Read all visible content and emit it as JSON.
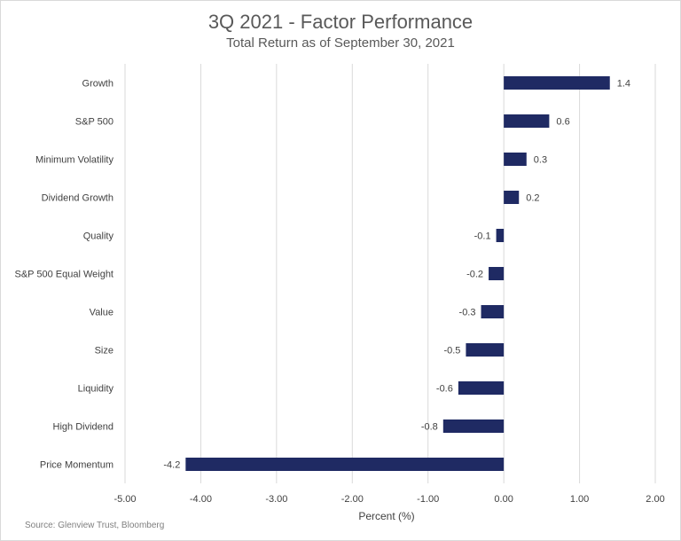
{
  "header": {
    "title": "3Q 2021 - Factor Performance",
    "subtitle": "Total Return as of September 30, 2021"
  },
  "footer": {
    "source": "Source: Glenview Trust, Bloomberg"
  },
  "chart_data": {
    "type": "bar",
    "orientation": "horizontal",
    "title": "3Q 2021 - Factor Performance",
    "subtitle": "Total Return as of September 30, 2021",
    "xlabel": "Percent (%)",
    "ylabel": "",
    "xlim": [
      -5.0,
      2.0
    ],
    "xticks": [
      -5.0,
      -4.0,
      -3.0,
      -2.0,
      -1.0,
      0.0,
      1.0,
      2.0
    ],
    "xtick_labels": [
      "-5.00",
      "-4.00",
      "-3.00",
      "-2.00",
      "-1.00",
      "0.00",
      "1.00",
      "2.00"
    ],
    "grid": "vertical",
    "bar_color": "#1f2a63",
    "categories": [
      "Growth",
      "S&P 500",
      "Minimum Volatility",
      "Dividend Growth",
      "Quality",
      "S&P 500 Equal Weight",
      "Value",
      "Size",
      "Liquidity",
      "High Dividend",
      "Price Momentum"
    ],
    "values": [
      1.4,
      0.6,
      0.3,
      0.2,
      -0.1,
      -0.2,
      -0.3,
      -0.5,
      -0.6,
      -0.8,
      -4.2
    ],
    "data_labels": [
      "1.4",
      "0.6",
      "0.3",
      "0.2",
      "-0.1",
      "-0.2",
      "-0.3",
      "-0.5",
      "-0.6",
      "-0.8",
      "-4.2"
    ]
  }
}
